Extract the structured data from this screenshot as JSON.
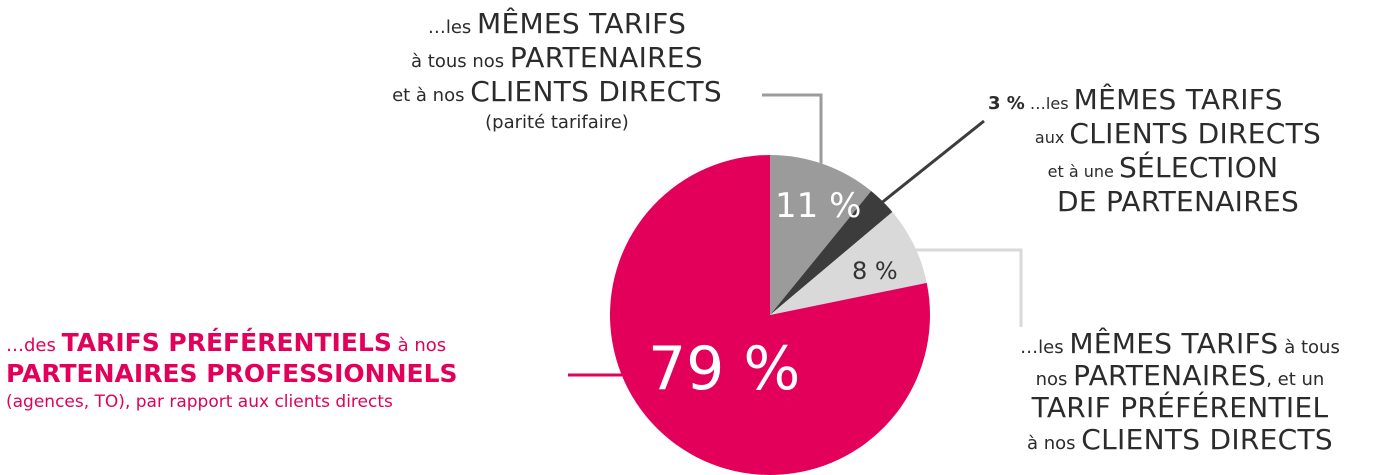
{
  "chart_data": {
    "type": "pie",
    "start_angle_deg": 0,
    "direction": "clockwise",
    "slices": [
      {
        "value": 11,
        "display": "11 %",
        "color": "#9b9b9b",
        "text_color": "#ffffff"
      },
      {
        "value": 3,
        "display": "3 %",
        "color": "#3c3c3c",
        "text_color": "#2b2b2b"
      },
      {
        "value": 8,
        "display": "8 %",
        "color": "#d9d9d9",
        "text_color": "#333333"
      },
      {
        "value": 79,
        "display": "79 %",
        "color": "#e2005a",
        "text_color": "#ffffff"
      }
    ],
    "annotations": {
      "top": {
        "l1_small": "…les ",
        "l1_big": "MÊMES TARIFS",
        "l2_small": "à tous nos ",
        "l2_big": "PARTENAIRES",
        "l3_small": "et à nos ",
        "l3_big": "CLIENTS DIRECTS",
        "l4": "(parité tarifaire)"
      },
      "right_top": {
        "pct": "3 %",
        "l1_small": " …les ",
        "l1_big": "MÊMES TARIFS",
        "l2_small": "aux ",
        "l2_big": "CLIENTS DIRECTS",
        "l3_small": "et à une ",
        "l3_big": "SÉLECTION",
        "l4_big": "DE PARTENAIRES"
      },
      "right_bottom": {
        "l1_small": "…les ",
        "l1_big": "MÊMES TARIFS",
        "l1_small2": " à tous",
        "l2_small": "nos ",
        "l2_big": "PARTENAIRES",
        "l2_small2": ", et un",
        "l3_big": "TARIF PRÉFÉRENTIEL",
        "l4_small": "à nos ",
        "l4_big": "CLIENTS DIRECTS"
      },
      "left": {
        "l1_small": "…des ",
        "l1_bold": "TARIFS PRÉFÉRENTIELS",
        "l1_small2": " à nos",
        "l2_bold": "PARTENAIRES PROFESSIONNELS",
        "l3": "(agences, TO), par rapport aux clients directs"
      }
    }
  }
}
